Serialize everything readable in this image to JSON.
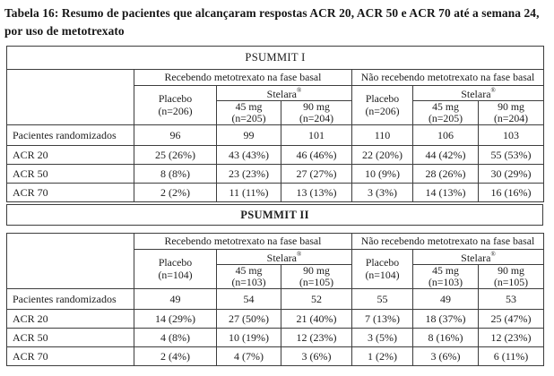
{
  "title": {
    "line1": "Tabela 16: Resumo de pacientes que alcançaram respostas ACR 20, ACR 50 e ACR 70 até a semana 24,",
    "line2": "por uso de metotrexato"
  },
  "brand": {
    "name": "Stelara",
    "mark": "®"
  },
  "tables": [
    {
      "section": "PSUMMIT I",
      "group_headers": [
        "Recebendo metotrexato na fase basal",
        "Não recebendo metotrexato na fase basal"
      ],
      "columns": [
        {
          "label": "Placebo",
          "n": "(n=206)"
        },
        {
          "label": "45 mg",
          "n": "(n=205)"
        },
        {
          "label": "90 mg",
          "n": "(n=204)"
        },
        {
          "label": "Placebo",
          "n": "(n=206)"
        },
        {
          "label": "45 mg",
          "n": "(n=205)"
        },
        {
          "label": "90 mg",
          "n": "(n=204)"
        }
      ],
      "rows": [
        {
          "label": "Pacientes randomizados",
          "values": [
            "96",
            "99",
            "101",
            "110",
            "106",
            "103"
          ]
        },
        {
          "label": "ACR 20",
          "values": [
            "25 (26%)",
            "43 (43%)",
            "46 (46%)",
            "22 (20%)",
            "44 (42%)",
            "55 (53%)"
          ]
        },
        {
          "label": "ACR 50",
          "values": [
            "8 (8%)",
            "23 (23%)",
            "27 (27%)",
            "10 (9%)",
            "28 (26%)",
            "30 (29%)"
          ]
        },
        {
          "label": "ACR 70",
          "values": [
            "2 (2%)",
            "11 (11%)",
            "13 (13%)",
            "3 (3%)",
            "14 (13%)",
            "16 (16%)"
          ]
        }
      ]
    },
    {
      "section": "PSUMMIT II",
      "group_headers": [
        "Recebendo metotrexato na fase basal",
        "Não recebendo metotrexato na fase basal"
      ],
      "columns": [
        {
          "label": "Placebo",
          "n": "(n=104)"
        },
        {
          "label": "45 mg",
          "n": "(n=103)"
        },
        {
          "label": "90 mg",
          "n": "(n=105)"
        },
        {
          "label": "Placebo",
          "n": "(n=104)"
        },
        {
          "label": "45 mg",
          "n": "(n=103)"
        },
        {
          "label": "90 mg",
          "n": "(n=105)"
        }
      ],
      "rows": [
        {
          "label": "Pacientes randomizados",
          "values": [
            "49",
            "54",
            "52",
            "55",
            "49",
            "53"
          ]
        },
        {
          "label": "ACR 20",
          "values": [
            "14 (29%)",
            "27 (50%)",
            "21 (40%)",
            "7 (13%)",
            "18 (37%)",
            "25 (47%)"
          ]
        },
        {
          "label": "ACR 50",
          "values": [
            "4 (8%)",
            "10 (19%)",
            "12 (23%)",
            "3 (5%)",
            "8 (16%)",
            "12 (23%)"
          ]
        },
        {
          "label": "ACR 70",
          "values": [
            "2 (4%)",
            "4 (7%)",
            "3 (6%)",
            "1 (2%)",
            "3 (6%)",
            "6 (11%)"
          ]
        }
      ]
    }
  ]
}
